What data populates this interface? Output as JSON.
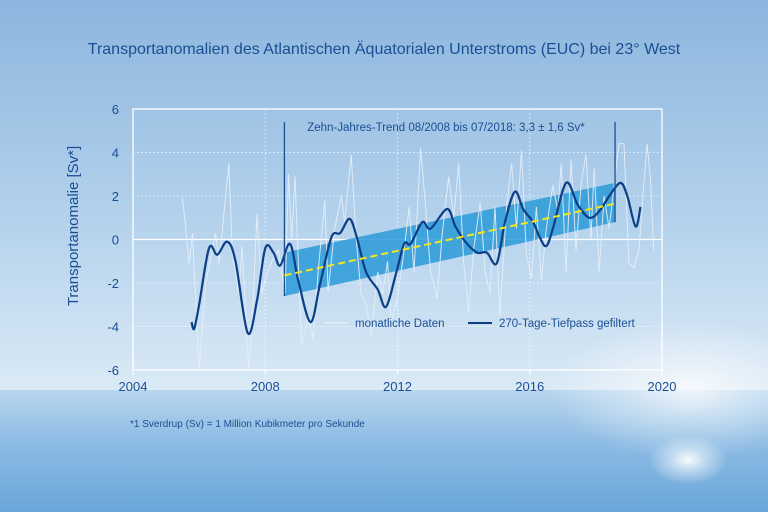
{
  "chart_data": {
    "type": "line",
    "title": "Transportanomalien des Atlantischen Äquatorialen Unterstroms (EUC) bei 23° West",
    "xlabel": "",
    "ylabel": "Transportanomalie [Sv*]",
    "xlim": [
      2004,
      2020
    ],
    "ylim": [
      -6,
      6
    ],
    "xticks": [
      "2004",
      "2008",
      "2012",
      "2016",
      "2020"
    ],
    "yticks": [
      "6",
      "4",
      "2",
      "0",
      "-2",
      "-4",
      "-6"
    ],
    "grid": true,
    "legend_placement": "bottom-right",
    "annotation": "Zehn-Jahres-Trend 08/2008 bis 07/2018: 3,3 ± 1,6 Sv*",
    "footnote": "*1 Sverdrup (Sv) = 1 Million Kubikmeter pro Sekunde",
    "series": [
      {
        "name": "monatliche Daten",
        "color": "#e6eef8",
        "x": [
          2005.5,
          2005.7,
          2005.8,
          2006.0,
          2006.2,
          2006.5,
          2006.6,
          2006.9,
          2007.0,
          2007.2,
          2007.3,
          2007.5,
          2007.6,
          2007.75,
          2007.9,
          2008.0,
          2008.2,
          2008.4,
          2008.6,
          2008.7,
          2008.8,
          2008.9,
          2009.0,
          2009.1,
          2009.3,
          2009.45,
          2009.6,
          2009.8,
          2009.9,
          2010.1,
          2010.3,
          2010.4,
          2010.6,
          2010.75,
          2010.9,
          2011.05,
          2011.2,
          2011.4,
          2011.55,
          2011.7,
          2011.8,
          2012.0,
          2012.2,
          2012.35,
          2012.5,
          2012.7,
          2012.85,
          2013.0,
          2013.2,
          2013.35,
          2013.55,
          2013.7,
          2013.85,
          2014.0,
          2014.15,
          2014.3,
          2014.5,
          2014.65,
          2014.8,
          2014.95,
          2015.1,
          2015.3,
          2015.45,
          2015.6,
          2015.75,
          2015.9,
          2016.05,
          2016.2,
          2016.35,
          2016.5,
          2016.7,
          2016.85,
          2016.95,
          2017.1,
          2017.25,
          2017.4,
          2017.55,
          2017.7,
          2017.85,
          2017.95,
          2018.1,
          2018.25,
          2018.4,
          2018.55,
          2018.7,
          2018.85,
          2019.0,
          2019.15,
          2019.3,
          2019.45,
          2019.55,
          2019.65,
          2019.75
        ],
        "y": [
          1.9,
          -1.1,
          0.3,
          -6.0,
          -2.0,
          0.3,
          -1.1,
          3.5,
          -0.5,
          -2.5,
          -0.3,
          -6.0,
          -4.0,
          1.2,
          -2.5,
          -1.8,
          -1.0,
          -0.5,
          -2.5,
          3.0,
          0.0,
          2.9,
          -1.0,
          -4.9,
          -3.5,
          -4.6,
          -1.5,
          1.8,
          -2.4,
          0.5,
          2.0,
          0.8,
          3.9,
          0.0,
          -2.5,
          -3.0,
          -4.5,
          -1.5,
          -2.5,
          -1.0,
          -3.8,
          -2.7,
          -0.5,
          1.5,
          -1.5,
          4.2,
          1.5,
          -1.5,
          -2.7,
          0.2,
          2.9,
          1.0,
          3.5,
          -1.0,
          -3.4,
          -0.5,
          1.7,
          -1.5,
          -2.5,
          1.5,
          -3.5,
          1.5,
          3.5,
          0.5,
          4.1,
          -0.7,
          -1.8,
          1.5,
          -1.9,
          0.5,
          2.5,
          1.3,
          3.5,
          -1.5,
          3.7,
          -0.5,
          2.5,
          3.9,
          0.0,
          3.3,
          -1.5,
          2.0,
          0.5,
          2.5,
          4.4,
          4.4,
          -1.1,
          -1.3,
          -0.5,
          2.5,
          4.4,
          2.8,
          -0.5
        ]
      },
      {
        "name": "270-Tage-Tiefpass gefiltert",
        "color": "#0d3f86",
        "x": [
          2005.77,
          2005.85,
          2006.0,
          2006.3,
          2006.55,
          2006.85,
          2007.1,
          2007.47,
          2007.75,
          2008.0,
          2008.25,
          2008.45,
          2008.75,
          2009.0,
          2009.37,
          2009.65,
          2010.0,
          2010.27,
          2010.55,
          2010.77,
          2011.05,
          2011.4,
          2011.65,
          2011.95,
          2012.2,
          2012.4,
          2012.75,
          2013.0,
          2013.5,
          2013.75,
          2014.05,
          2014.4,
          2014.7,
          2015.0,
          2015.25,
          2015.55,
          2015.8,
          2016.1,
          2016.3,
          2016.5,
          2016.7,
          2017.1,
          2017.45,
          2017.8,
          2018.1,
          2018.45,
          2018.75,
          2018.95,
          2019.2,
          2019.35
        ],
        "y": [
          -3.8,
          -4.1,
          -3.0,
          -0.4,
          -0.7,
          -0.1,
          -1.0,
          -4.3,
          -2.8,
          -0.4,
          -0.6,
          -1.2,
          -0.2,
          -1.9,
          -3.8,
          -2.1,
          0.1,
          0.3,
          0.95,
          0.1,
          -1.5,
          -2.3,
          -3.1,
          -1.6,
          -0.2,
          -0.2,
          0.8,
          0.5,
          1.4,
          0.6,
          -0.1,
          -0.6,
          -0.6,
          -1.1,
          0.8,
          2.2,
          1.4,
          0.8,
          0.1,
          -0.3,
          0.5,
          2.6,
          1.6,
          1.0,
          1.3,
          2.1,
          2.6,
          2.0,
          0.6,
          1.5
        ]
      }
    ],
    "trend": {
      "start": 2008.58,
      "end": 2018.58,
      "line": [
        -1.65,
        1.65
      ],
      "band_lower": [
        -2.6,
        0.8
      ],
      "band_upper": [
        -0.6,
        2.6
      ],
      "marker_top": 5.4,
      "line_color": "#f5e51e",
      "band_color": "#2a9ad8"
    }
  },
  "colors": {
    "text": "#1a4f94",
    "frame": "#ffffff"
  }
}
